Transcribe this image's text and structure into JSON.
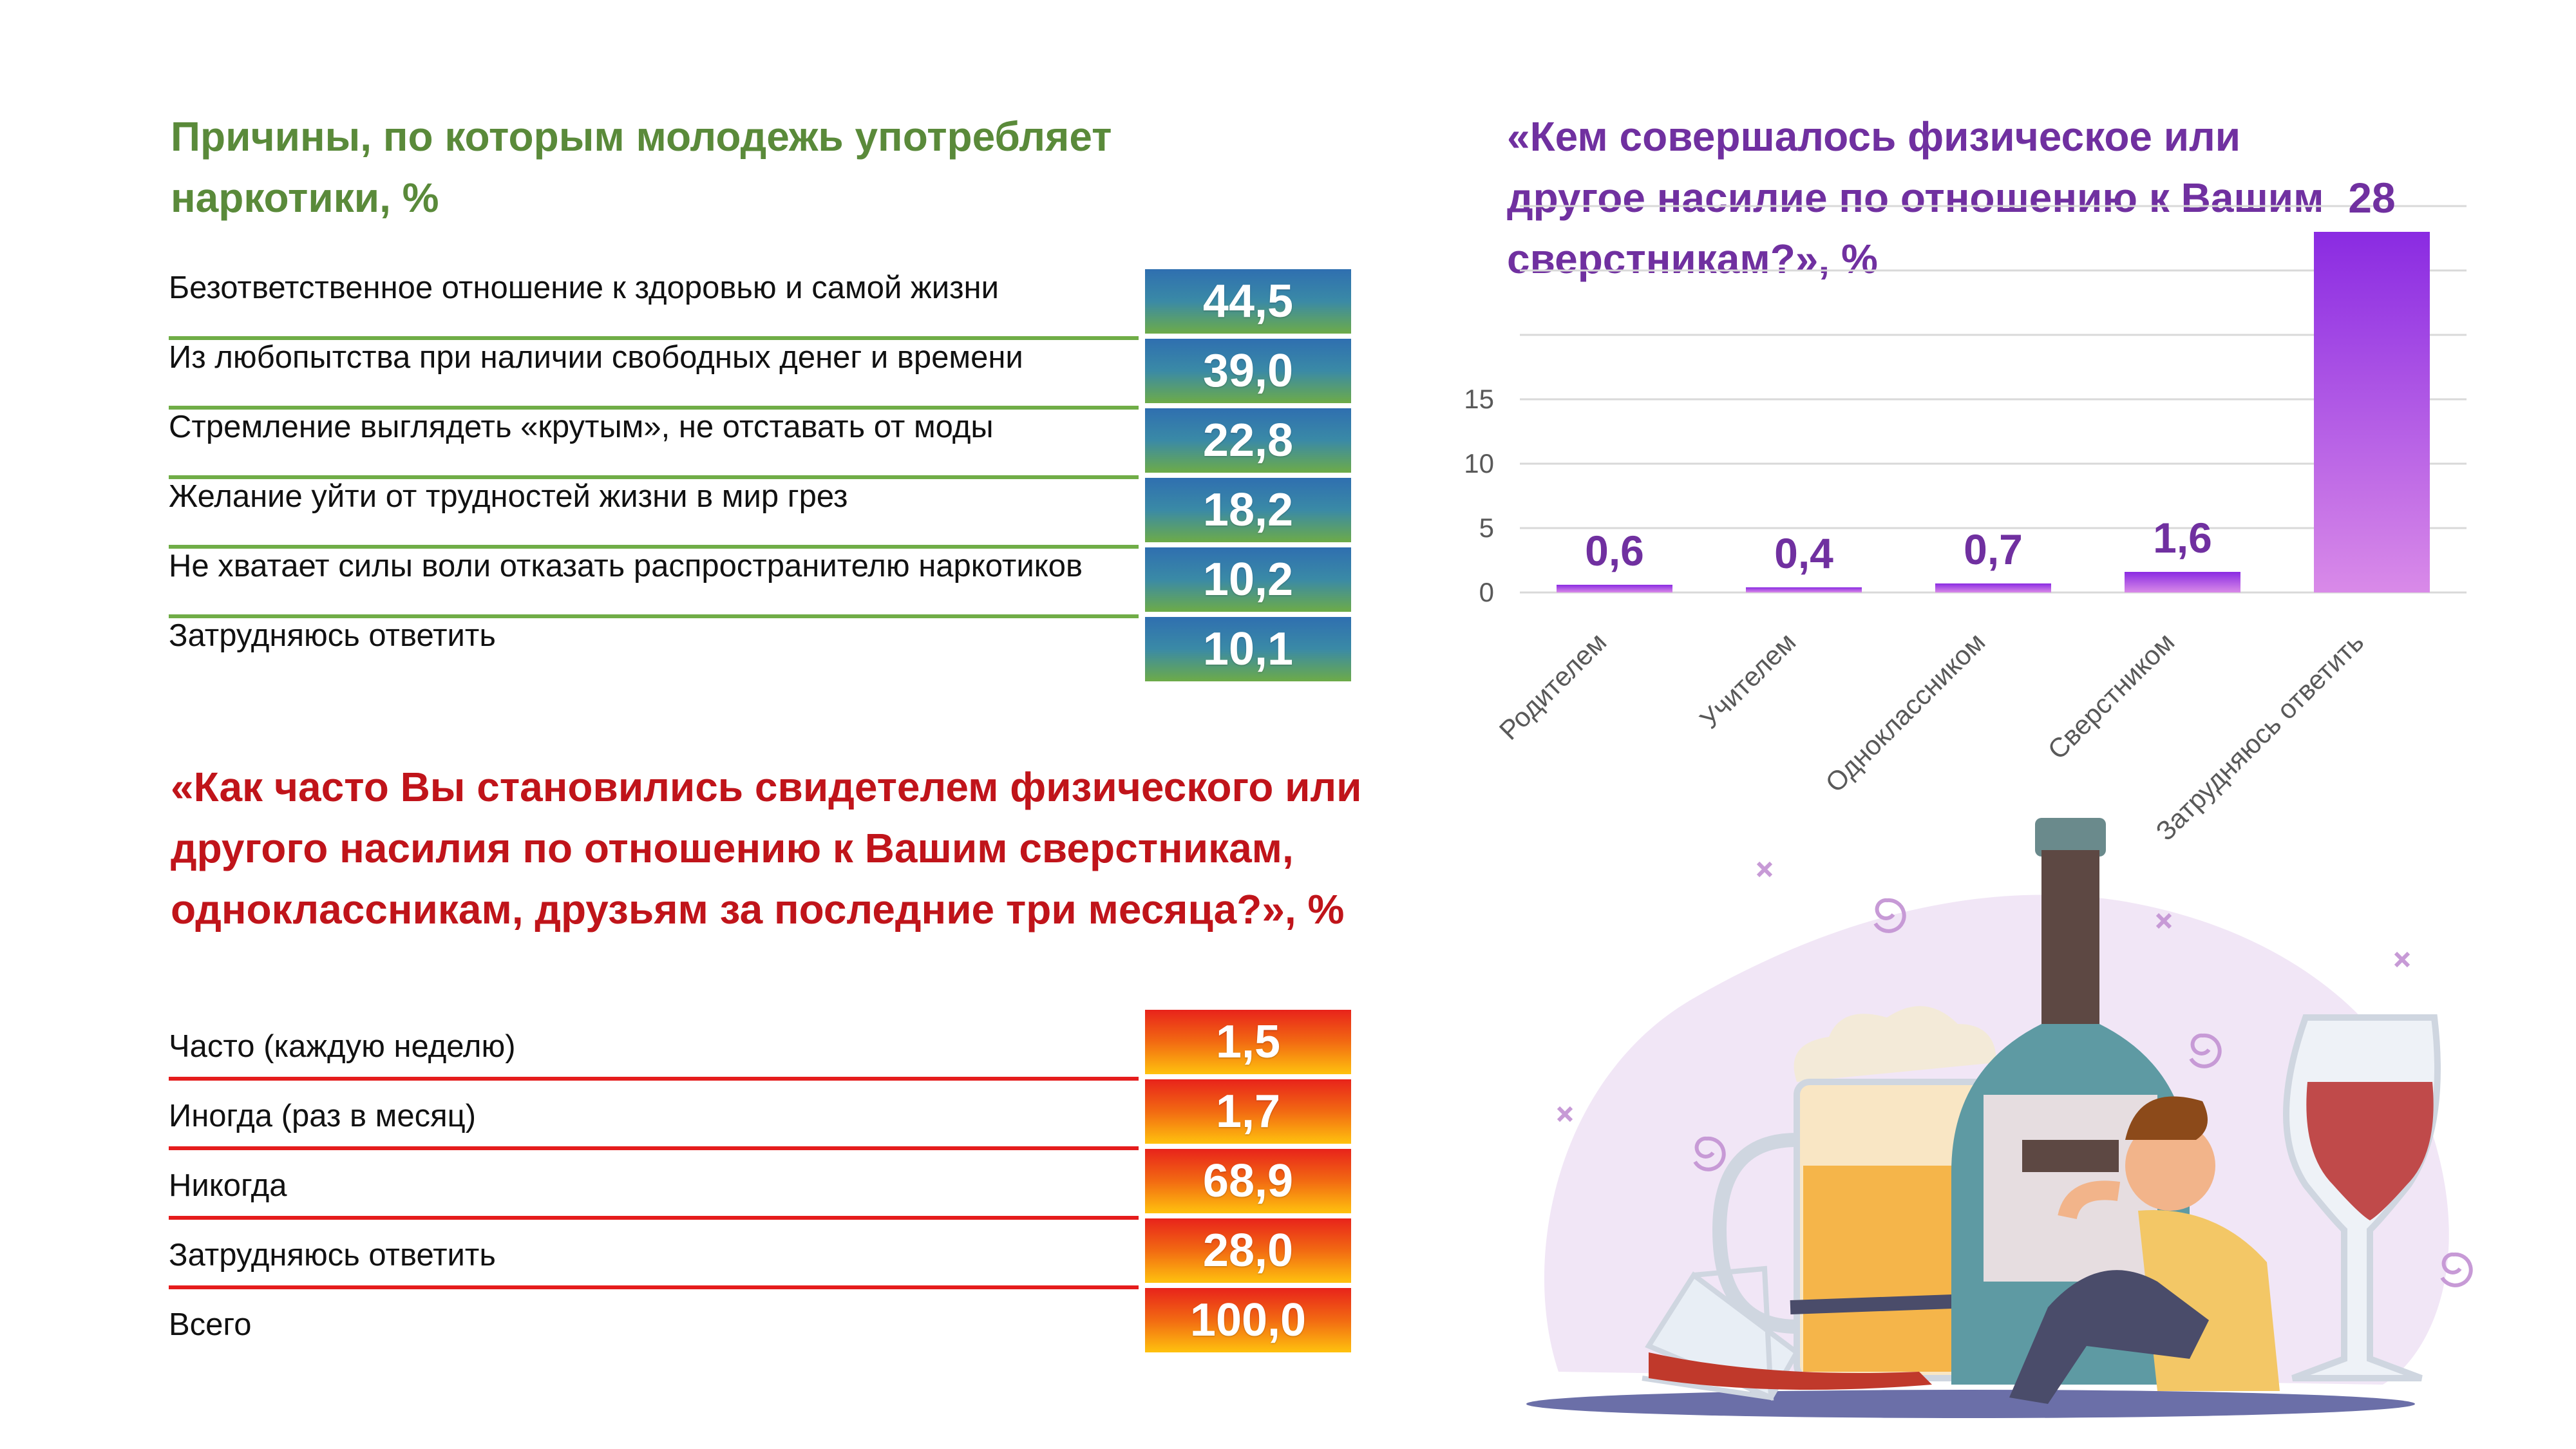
{
  "left_top": {
    "title": "Причины, по которым молодежь употребляет наркотики, %",
    "rows": [
      {
        "label": "Безответственное отношение к здоровью и самой жизни",
        "value": "44,5"
      },
      {
        "label": "Из любопытства при наличии свободных денег и времени",
        "value": "39,0"
      },
      {
        "label": "Стремление выглядеть «крутым», не отставать от моды",
        "value": "22,8"
      },
      {
        "label": "Желание уйти от трудностей жизни в мир грез",
        "value": "18,2"
      },
      {
        "label": "Не хватает силы воли отказать распространителю наркотиков",
        "value": "10,2"
      },
      {
        "label": "Затрудняюсь ответить",
        "value": "10,1"
      }
    ]
  },
  "left_bottom": {
    "title": "«Как часто Вы становились свидетелем физического или другого насилия по отношению к Вашим сверстникам, одноклассникам, друзьям за последние три месяца?», %",
    "rows": [
      {
        "label": "Часто (каждую неделю)",
        "value": "1,5"
      },
      {
        "label": "Иногда (раз в месяц)",
        "value": "1,7"
      },
      {
        "label": "Никогда",
        "value": "68,9"
      },
      {
        "label": "Затрудняюсь ответить",
        "value": "28,0"
      },
      {
        "label": "Всего",
        "value": "100,0"
      }
    ]
  },
  "chart_data": {
    "type": "bar",
    "title": "«Кем совершалось физическое или другое насилие по отношению к Вашим сверстникам?», %",
    "categories": [
      "Родителем",
      "Учителем",
      "Одноклассником",
      "Сверстником",
      "Затрудняюсь ответить"
    ],
    "values": [
      0.6,
      0.4,
      0.7,
      1.6,
      28
    ],
    "value_labels": [
      "0,6",
      "0,4",
      "0,7",
      "1,6",
      "28"
    ],
    "yticks": [
      0,
      5,
      10,
      15
    ],
    "ylim": [
      0,
      30
    ],
    "grid": true,
    "bar_color": "#9b30e0"
  }
}
